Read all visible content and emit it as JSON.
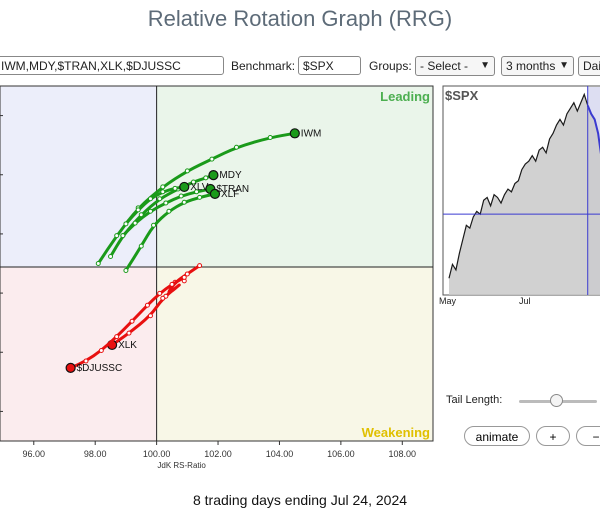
{
  "page": {
    "title": "Relative Rotation Graph (RRG)",
    "footer": "8 trading days ending Jul 24, 2024"
  },
  "toolbar": {
    "symbols": "IWM,MDY,$TRAN,XLK,$DJUSSC",
    "benchmark_label": "Benchmark:",
    "benchmark_value": "$SPX",
    "groups_label": "Groups:",
    "groups_value": "- Select -",
    "period_value": "3 months",
    "frequency_value": "Dai"
  },
  "controls": {
    "tail_length_label": "Tail Length:",
    "tail_length_fraction": 0.48,
    "animate_label": "animate",
    "plus_label": "+",
    "minus_label": "−"
  },
  "colors": {
    "leading": "#4caf50",
    "weakening": "#e0c000",
    "improving_bg": "#eceefa",
    "leading_bg": "#eaf5ea",
    "lagging_bg": "#fbecee",
    "weakening_bg": "#f8f7e7",
    "green_series": "#1a9a1a",
    "red_series": "#e81010",
    "price_line": "#1a1a1a",
    "price_highlight": "#3a3ad0"
  },
  "chart_data": [
    {
      "type": "scatter",
      "title": "",
      "xlabel": "JdK RS-Ratio",
      "ylabel": "",
      "xlim": [
        94.9,
        109.0
      ],
      "ylim": [
        97.5,
        102.6
      ],
      "center": [
        100.0,
        100.0
      ],
      "x_ticks": [
        "96.00",
        "98.00",
        "100.00",
        "102.00",
        "104.00",
        "106.00",
        "108.00"
      ],
      "x_tick_values": [
        96,
        98,
        100,
        102,
        104,
        106,
        108
      ],
      "quadrant_labels": {
        "top_right": "Leading",
        "bottom_right": "Weakening"
      },
      "series": [
        {
          "name": "IWM",
          "color": "green",
          "x": [
            98.1,
            98.7,
            99.4,
            100.2,
            101.0,
            101.8,
            102.6,
            103.7,
            104.5
          ],
          "y": [
            100.05,
            100.45,
            100.85,
            101.15,
            101.38,
            101.55,
            101.72,
            101.86,
            101.92
          ]
        },
        {
          "name": "MDY",
          "color": "green",
          "x": [
            98.5,
            98.9,
            99.5,
            100.1,
            100.7,
            101.2,
            101.6,
            101.85
          ],
          "y": [
            100.15,
            100.45,
            100.75,
            100.98,
            101.12,
            101.22,
            101.28,
            101.32
          ]
        },
        {
          "name": "XLV",
          "color": "green",
          "x": [
            99.0,
            99.4,
            99.8,
            100.2,
            100.6,
            100.9
          ],
          "y": [
            100.62,
            100.82,
            100.98,
            101.08,
            101.13,
            101.15
          ]
        },
        {
          "name": "$TRAN",
          "color": "green",
          "x": [
            98.9,
            99.3,
            99.8,
            100.3,
            100.8,
            101.3,
            101.75
          ],
          "y": [
            100.45,
            100.63,
            100.8,
            100.92,
            101.02,
            101.08,
            101.12
          ]
        },
        {
          "name": "XLF",
          "color": "green",
          "x": [
            99.0,
            99.5,
            99.9,
            100.4,
            100.9,
            101.4,
            101.9
          ],
          "y": [
            99.95,
            100.3,
            100.6,
            100.8,
            100.93,
            101.0,
            101.05
          ]
        },
        {
          "name": "XLK",
          "color": "red",
          "x": [
            101.4,
            101.0,
            100.6,
            100.3,
            100.9,
            100.2,
            99.8,
            99.1,
            98.55
          ],
          "y": [
            100.02,
            99.9,
            99.78,
            99.58,
            99.8,
            99.55,
            99.3,
            99.05,
            98.88
          ]
        },
        {
          "name": "$DJUSSC",
          "color": "red",
          "x": [
            100.9,
            100.5,
            100.1,
            99.7,
            99.2,
            98.7,
            98.2,
            97.7,
            97.2
          ],
          "y": [
            99.85,
            99.75,
            99.62,
            99.45,
            99.22,
            99.0,
            98.8,
            98.65,
            98.55
          ]
        }
      ]
    },
    {
      "type": "area",
      "title": "$SPX",
      "x_labels": [
        "May",
        "Jul"
      ],
      "values": [
        5010,
        5060,
        5040,
        5100,
        5150,
        5200,
        5190,
        5230,
        5250,
        5240,
        5290,
        5300,
        5270,
        5310,
        5300,
        5280,
        5310,
        5330,
        5320,
        5350,
        5360,
        5400,
        5420,
        5430,
        5450,
        5430,
        5470,
        5480,
        5460,
        5510,
        5530,
        5560,
        5580,
        5560,
        5600,
        5620,
        5640,
        5610,
        5640,
        5670,
        5630,
        5600,
        5580,
        5530,
        5440,
        5470,
        5420,
        5380
      ],
      "highlight_from_index": 40,
      "ylim": [
        4950,
        5700
      ]
    }
  ]
}
